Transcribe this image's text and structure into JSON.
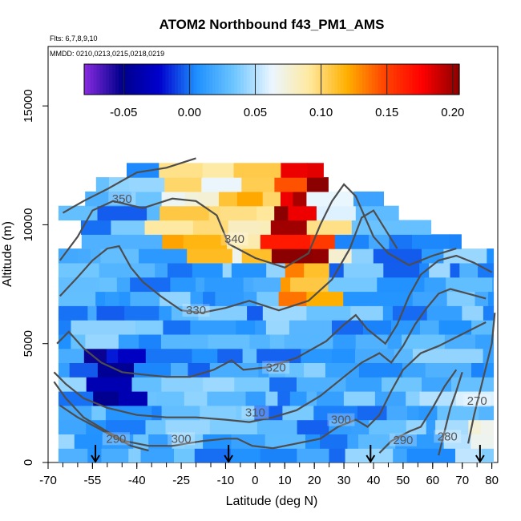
{
  "chart_data": {
    "type": "heatmap",
    "title": "ATOM2 Northbound f43_PM1_AMS",
    "subtitle_lines": [
      "Flts: 6,7,8,9,10",
      "MMDD: 0210,0213,0215,0218,0219"
    ],
    "xlabel": "Latitude (deg N)",
    "ylabel": "Altitude (m)",
    "xlim": [
      -70,
      82
    ],
    "ylim": [
      0,
      17500
    ],
    "x_tick_labels": [
      "-70",
      "-55",
      "-40",
      "-25",
      "-10",
      "0",
      "10",
      "20",
      "30",
      "40",
      "50",
      "60",
      "70",
      "80"
    ],
    "x_tick_values": [
      -70,
      -55,
      -40,
      -25,
      -10,
      0,
      10,
      20,
      30,
      40,
      50,
      60,
      70,
      80
    ],
    "y_tick_labels": [
      "0",
      "5000",
      "10000",
      "15000"
    ],
    "y_tick_values": [
      0,
      5000,
      10000,
      15000
    ],
    "colorbar": {
      "range": [
        -0.08,
        0.205
      ],
      "tick_labels": [
        "-0.05",
        "0.00",
        "0.05",
        "0.10",
        "0.15",
        "0.20"
      ],
      "tick_values": [
        -0.05,
        0.0,
        0.05,
        0.1,
        0.15,
        0.2
      ],
      "colors": [
        "#8a2be2",
        "#00008b",
        "#0000cd",
        "#1e90ff",
        "#6ec6ff",
        "#eaf6ff",
        "#ffe9a0",
        "#ffb000",
        "#ff4500",
        "#ff0000",
        "#8b0000"
      ]
    },
    "contours": [
      {
        "label": "350",
        "label_at": [
          -45,
          11000
        ],
        "points": [
          [
            -65,
            10500
          ],
          [
            -58,
            11000
          ],
          [
            -50,
            11500
          ],
          [
            -40,
            12200
          ],
          [
            -30,
            12400
          ],
          [
            -20,
            12800
          ]
        ]
      },
      {
        "label": "340",
        "label_at": [
          -7,
          9300
        ],
        "points": [
          [
            -66,
            8500
          ],
          [
            -60,
            9500
          ],
          [
            -55,
            10600
          ],
          [
            -48,
            11000
          ],
          [
            -38,
            10700
          ],
          [
            -28,
            11100
          ],
          [
            -20,
            11000
          ],
          [
            -13,
            10400
          ],
          [
            -9,
            9200
          ],
          [
            0,
            8600
          ],
          [
            10,
            8200
          ],
          [
            18,
            8800
          ],
          [
            22,
            10000
          ],
          [
            26,
            11000
          ],
          [
            30,
            11700
          ],
          [
            34,
            11200
          ],
          [
            40,
            9500
          ],
          [
            45,
            8800
          ],
          [
            52,
            8300
          ],
          [
            60,
            8700
          ],
          [
            68,
            9000
          ]
        ]
      },
      {
        "label": "330",
        "label_at": [
          -20,
          6300
        ],
        "points": [
          [
            -66,
            7000
          ],
          [
            -60,
            7800
          ],
          [
            -55,
            8500
          ],
          [
            -50,
            9000
          ],
          [
            -46,
            9100
          ],
          [
            -42,
            8200
          ],
          [
            -38,
            7600
          ],
          [
            -32,
            7000
          ],
          [
            -25,
            6400
          ],
          [
            -18,
            6300
          ],
          [
            -10,
            6500
          ],
          [
            -2,
            6800
          ],
          [
            8,
            6400
          ],
          [
            18,
            6800
          ],
          [
            26,
            7700
          ],
          [
            32,
            9000
          ],
          [
            36,
            10300
          ],
          [
            40,
            10600
          ],
          [
            44,
            9800
          ],
          [
            48,
            9000
          ]
        ]
      },
      {
        "label": "320",
        "label_at": [
          7,
          3900
        ],
        "points": [
          [
            -67,
            5000
          ],
          [
            -63,
            5500
          ],
          [
            -58,
            4800
          ],
          [
            -52,
            4200
          ],
          [
            -45,
            3800
          ],
          [
            -38,
            3700
          ],
          [
            -30,
            3600
          ],
          [
            -22,
            3600
          ],
          [
            -14,
            3900
          ],
          [
            -8,
            4300
          ],
          [
            -4,
            3900
          ],
          [
            4,
            4000
          ],
          [
            14,
            4400
          ],
          [
            24,
            5100
          ],
          [
            30,
            5800
          ],
          [
            34,
            6200
          ],
          [
            38,
            5600
          ],
          [
            44,
            5000
          ],
          [
            48,
            5800
          ],
          [
            52,
            7000
          ],
          [
            56,
            7900
          ],
          [
            62,
            8500
          ],
          [
            68,
            8700
          ],
          [
            74,
            8400
          ],
          [
            80,
            8000
          ]
        ]
      },
      {
        "label": "310",
        "label_at": [
          0,
          2000
        ],
        "points": [
          [
            -68,
            3800
          ],
          [
            -64,
            3300
          ],
          [
            -58,
            2700
          ],
          [
            -50,
            2300
          ],
          [
            -40,
            2000
          ],
          [
            -30,
            1900
          ],
          [
            -20,
            1900
          ],
          [
            -10,
            1800
          ],
          [
            -2,
            1700
          ],
          [
            6,
            1900
          ],
          [
            14,
            2200
          ],
          [
            22,
            2800
          ],
          [
            30,
            3600
          ],
          [
            36,
            4200
          ],
          [
            42,
            4600
          ],
          [
            46,
            4200
          ],
          [
            50,
            4900
          ],
          [
            54,
            5800
          ],
          [
            58,
            6500
          ],
          [
            62,
            7100
          ],
          [
            66,
            7300
          ],
          [
            72,
            7100
          ],
          [
            78,
            6900
          ]
        ]
      },
      {
        "label": "300",
        "label_at": [
          -25,
          900
        ],
        "points": [
          [
            -68,
            3400
          ],
          [
            -64,
            2700
          ],
          [
            -58,
            1900
          ],
          [
            -50,
            1300
          ],
          [
            -44,
            900
          ],
          [
            -36,
            700
          ],
          [
            -28,
            700
          ],
          [
            -18,
            900
          ],
          [
            -10,
            1000
          ],
          [
            -6,
            1000
          ],
          [
            -1,
            700
          ],
          [
            6,
            600
          ],
          [
            14,
            800
          ],
          [
            22,
            1000
          ],
          [
            28,
            1500
          ],
          [
            34,
            1800
          ],
          [
            38,
            1500
          ],
          [
            42,
            2000
          ],
          [
            46,
            3000
          ],
          [
            50,
            3900
          ],
          [
            56,
            4600
          ],
          [
            62,
            4900
          ],
          [
            70,
            5400
          ],
          [
            78,
            5900
          ]
        ]
      },
      {
        "label": "300",
        "label_at": [
          29,
          1700
        ],
        "points": []
      },
      {
        "label": "290",
        "label_at": [
          -47,
          900
        ],
        "points": [
          [
            -66,
            2400
          ],
          [
            -60,
            1900
          ],
          [
            -54,
            1500
          ],
          [
            -48,
            1100
          ],
          [
            -42,
            700
          ],
          [
            -36,
            500
          ]
        ]
      },
      {
        "label": "290",
        "label_at": [
          50,
          850
        ],
        "points": [
          [
            42,
            400
          ],
          [
            46,
            900
          ],
          [
            52,
            1300
          ],
          [
            56,
            1500
          ],
          [
            60,
            2300
          ],
          [
            64,
            3200
          ],
          [
            68,
            3900
          ]
        ]
      },
      {
        "label": "280",
        "label_at": [
          65,
          1000
        ],
        "points": [
          [
            62,
            300
          ],
          [
            64,
            1300
          ],
          [
            66,
            2300
          ],
          [
            68,
            3000
          ],
          [
            70,
            3800
          ]
        ]
      },
      {
        "label": "270",
        "label_at": [
          75,
          2500
        ],
        "points": [
          [
            72,
            800
          ],
          [
            74,
            2000
          ],
          [
            76,
            3000
          ],
          [
            78,
            4000
          ],
          [
            80,
            5000
          ],
          [
            81,
            6300
          ]
        ]
      }
    ],
    "arrow_markers_x": [
      -54,
      -9,
      39,
      76
    ]
  }
}
